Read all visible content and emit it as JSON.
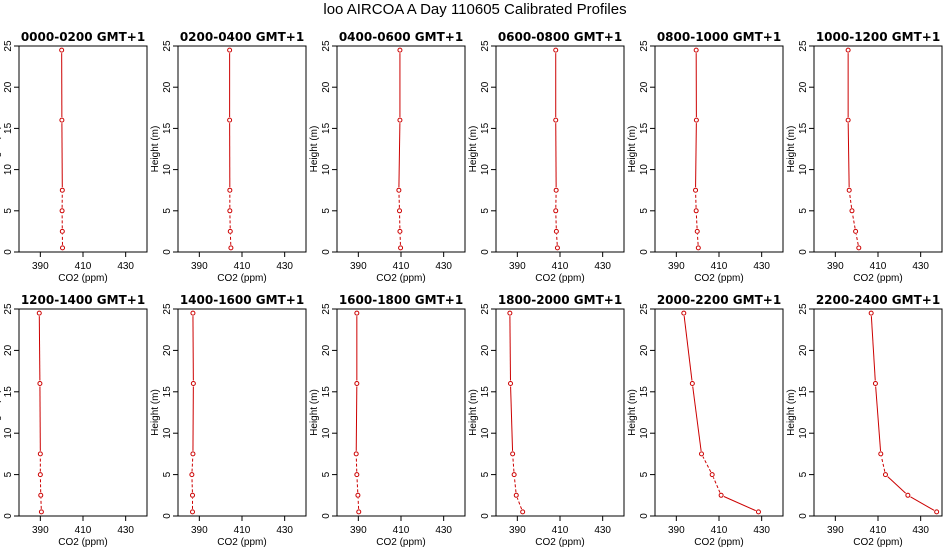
{
  "title": "loo AIRCOA A  Day 110605  Calibrated Profiles",
  "chart_data": {
    "type": "line",
    "title": "loo AIRCOA A  Day 110605  Calibrated Profiles",
    "xlabel": "CO2 (ppm)",
    "ylabel": "Height (m)",
    "xlim": [
      380,
      440
    ],
    "ylim": [
      0,
      25
    ],
    "xticks": [
      390,
      410,
      430
    ],
    "yticks": [
      0,
      5,
      10,
      15,
      20,
      25
    ],
    "heights": [
      0.5,
      2.5,
      5,
      7.5,
      16,
      24.5
    ],
    "color": "#cc0000",
    "panels": [
      {
        "title": "0000-0200 GMT+1",
        "x": [
          400.4,
          400.3,
          400.2,
          400.3,
          400.1,
          400.0
        ]
      },
      {
        "title": "0200-0400 GMT+1",
        "x": [
          404.8,
          404.5,
          404.3,
          404.3,
          404.2,
          404.2
        ]
      },
      {
        "title": "0400-0600 GMT+1",
        "x": [
          409.8,
          409.5,
          409.3,
          409.0,
          409.5,
          409.5
        ]
      },
      {
        "title": "0600-0800 GMT+1",
        "x": [
          408.8,
          408.3,
          408.0,
          408.2,
          408.0,
          408.0
        ]
      },
      {
        "title": "0800-1000 GMT+1",
        "x": [
          400.3,
          399.8,
          399.3,
          399.0,
          399.4,
          399.3
        ]
      },
      {
        "title": "1000-1200 GMT+1",
        "x": [
          401.0,
          399.5,
          397.8,
          396.5,
          396.0,
          396.0
        ]
      },
      {
        "title": "1200-1400 GMT+1",
        "x": [
          390.5,
          390.2,
          390.0,
          390.0,
          389.8,
          389.5
        ]
      },
      {
        "title": "1400-1600 GMT+1",
        "x": [
          386.8,
          386.8,
          386.5,
          387.0,
          387.2,
          387.0
        ]
      },
      {
        "title": "1600-1800 GMT+1",
        "x": [
          390.2,
          389.8,
          389.3,
          389.0,
          389.3,
          389.3
        ]
      },
      {
        "title": "1800-2000 GMT+1",
        "x": [
          392.5,
          389.5,
          388.5,
          387.8,
          386.8,
          386.5
        ]
      },
      {
        "title": "2000-2200 GMT+1",
        "x": [
          428.5,
          411.0,
          406.8,
          401.8,
          397.5,
          393.5
        ]
      },
      {
        "title": "2200-2400 GMT+1",
        "x": [
          437.5,
          424.0,
          413.5,
          411.3,
          408.8,
          406.8
        ]
      }
    ]
  }
}
